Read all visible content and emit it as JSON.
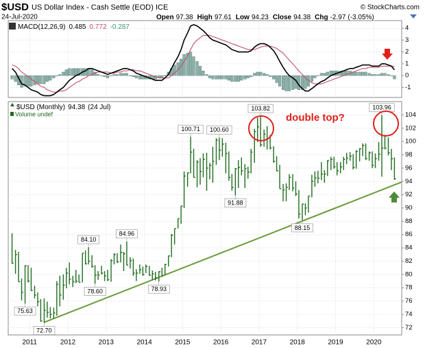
{
  "chart_data": {
    "type": "ohlc",
    "title": "$USD",
    "subtitle": "US Dollar Index - Cash Settle (EOD) ICE",
    "date": "24-Jul-2020",
    "source": "© StockCharts.com",
    "stats": [
      {
        "label": "Open",
        "value": 97.38
      },
      {
        "label": "High",
        "value": 97.61
      },
      {
        "label": "Low",
        "value": 94.23
      },
      {
        "label": "Close",
        "value": 94.38
      },
      {
        "label": "Chg",
        "value": -2.97
      }
    ],
    "change_percent": {
      "value": -3.05,
      "label": "(-3.05%)"
    },
    "legend_date": "(24 Jul)",
    "volume_label": "Volume undef",
    "annotation": "double top?",
    "grid": true,
    "xlim": [
      2010.44,
      2020.73
    ],
    "xticks": [
      2011,
      2012,
      2013,
      2014,
      2015,
      2016,
      2017,
      2018,
      2019,
      2020
    ],
    "ylim": [
      70.9,
      106
    ],
    "yticks": [
      72,
      74,
      76,
      78,
      80,
      82,
      84,
      86,
      88,
      90,
      92,
      94,
      96,
      98,
      100,
      102,
      104
    ],
    "y2lim": [
      -1.85,
      4.65
    ],
    "y2ticks": [
      -1,
      0,
      1,
      2,
      3,
      4
    ],
    "x": [
      2010.54,
      2010.63,
      2010.71,
      2010.79,
      2010.88,
      2010.96,
      2011.04,
      2011.13,
      2011.21,
      2011.29,
      2011.38,
      2011.46,
      2011.54,
      2011.63,
      2011.71,
      2011.79,
      2011.88,
      2011.96,
      2012.04,
      2012.13,
      2012.21,
      2012.29,
      2012.38,
      2012.46,
      2012.54,
      2012.63,
      2012.71,
      2012.79,
      2012.88,
      2012.96,
      2013.04,
      2013.13,
      2013.21,
      2013.29,
      2013.38,
      2013.46,
      2013.54,
      2013.63,
      2013.71,
      2013.79,
      2013.88,
      2013.96,
      2014.04,
      2014.13,
      2014.21,
      2014.29,
      2014.38,
      2014.46,
      2014.54,
      2014.63,
      2014.71,
      2014.79,
      2014.88,
      2014.96,
      2015.04,
      2015.13,
      2015.21,
      2015.29,
      2015.38,
      2015.46,
      2015.54,
      2015.63,
      2015.71,
      2015.79,
      2015.88,
      2015.96,
      2016.04,
      2016.13,
      2016.21,
      2016.29,
      2016.38,
      2016.46,
      2016.54,
      2016.63,
      2016.71,
      2016.79,
      2016.88,
      2016.96,
      2017.04,
      2017.13,
      2017.21,
      2017.29,
      2017.38,
      2017.46,
      2017.54,
      2017.63,
      2017.71,
      2017.79,
      2017.88,
      2017.96,
      2018.04,
      2018.13,
      2018.21,
      2018.29,
      2018.38,
      2018.46,
      2018.54,
      2018.63,
      2018.71,
      2018.79,
      2018.88,
      2018.96,
      2019.04,
      2019.13,
      2019.21,
      2019.29,
      2019.38,
      2019.46,
      2019.54,
      2019.63,
      2019.71,
      2019.79,
      2019.88,
      2019.96,
      2020.04,
      2020.13,
      2020.21,
      2020.29,
      2020.38,
      2020.46,
      2020.54
    ],
    "series": [
      {
        "name": "$USD (Monthly)",
        "color": "#1f6b1f",
        "high": [
          86.2,
          83.7,
          83.4,
          79.4,
          81.4,
          81.4,
          81.0,
          78.3,
          77.3,
          76.3,
          76.4,
          75.9,
          75.1,
          75.0,
          79.0,
          79.8,
          80.0,
          81.0,
          81.8,
          79.8,
          80.7,
          80.0,
          83.2,
          83.6,
          84.1,
          82.9,
          81.4,
          80.5,
          81.3,
          80.5,
          80.7,
          82.3,
          83.2,
          83.2,
          84.5,
          83.4,
          84.96,
          82.6,
          82.4,
          80.8,
          81.5,
          81.2,
          81.5,
          81.3,
          80.6,
          80.4,
          80.5,
          81.0,
          81.6,
          82.8,
          86.1,
          86.9,
          88.4,
          90.3,
          95.5,
          95.3,
          100.71,
          98.9,
          97.2,
          97.5,
          98.2,
          98.3,
          96.8,
          99.2,
          100.5,
          100.6,
          100.5,
          99.8,
          98.5,
          95.1,
          96.0,
          97.2,
          97.6,
          96.6,
          96.2,
          98.9,
          101.9,
          103.6,
          103.82,
          101.8,
          102.3,
          101.0,
          99.3,
          97.8,
          96.5,
          93.6,
          93.7,
          95.1,
          95.1,
          94.0,
          92.7,
          90.6,
          90.7,
          91.8,
          95.0,
          95.5,
          95.6,
          96.9,
          95.7,
          97.2,
          97.7,
          97.7,
          96.9,
          96.9,
          97.7,
          98.3,
          98.4,
          98.1,
          98.7,
          99.0,
          99.7,
          99.7,
          98.5,
          98.5,
          98.2,
          99.9,
          103.96,
          101.0,
          100.6,
          98.9,
          97.61
        ],
        "low": [
          81.6,
          80.1,
          78.9,
          76.1,
          75.63,
          78.8,
          77.5,
          76.4,
          75.2,
          72.9,
          72.7,
          73.5,
          73.4,
          73.4,
          73.8,
          75.2,
          76.2,
          77.9,
          78.5,
          78.1,
          78.7,
          78.8,
          78.8,
          81.5,
          81.5,
          81.0,
          78.6,
          79.2,
          80.0,
          79.0,
          79.0,
          78.9,
          81.5,
          81.7,
          81.8,
          80.5,
          81.4,
          80.9,
          79.8,
          79.0,
          80.1,
          79.8,
          80.2,
          79.8,
          79.2,
          79.1,
          78.93,
          79.7,
          79.9,
          81.2,
          82.6,
          84.5,
          86.9,
          87.6,
          90.0,
          93.2,
          95.2,
          94.6,
          93.1,
          93.5,
          94.6,
          92.6,
          94.3,
          93.8,
          96.5,
          97.2,
          97.7,
          95.2,
          94.1,
          92.6,
          91.88,
          93.0,
          94.9,
          93.0,
          94.4,
          95.2,
          96.8,
          99.9,
          99.2,
          99.2,
          98.8,
          98.8,
          96.8,
          95.5,
          92.9,
          91.0,
          91.0,
          92.7,
          92.5,
          91.8,
          88.4,
          88.15,
          88.9,
          89.3,
          91.6,
          93.2,
          93.7,
          94.2,
          93.8,
          94.8,
          95.7,
          95.9,
          94.9,
          95.2,
          95.7,
          96.6,
          97.1,
          95.8,
          95.9,
          97.0,
          97.8,
          97.2,
          97.1,
          96.0,
          96.0,
          97.1,
          94.7,
          98.8,
          97.9,
          95.7,
          94.23
        ],
        "close": [
          81.7,
          83.0,
          78.9,
          77.3,
          81.3,
          79.0,
          77.6,
          76.9,
          75.9,
          73.0,
          74.6,
          74.3,
          74.0,
          74.2,
          78.5,
          76.9,
          78.4,
          80.2,
          79.3,
          78.9,
          79.0,
          78.8,
          83.2,
          81.6,
          82.0,
          81.2,
          79.9,
          79.9,
          80.2,
          79.8,
          79.2,
          82.1,
          83.0,
          81.9,
          83.3,
          83.1,
          81.4,
          82.1,
          80.2,
          80.2,
          80.7,
          80.0,
          81.2,
          79.9,
          80.1,
          79.5,
          80.4,
          79.8,
          81.5,
          82.8,
          85.9,
          86.9,
          88.4,
          90.3,
          94.8,
          95.3,
          98.4,
          94.6,
          96.9,
          95.5,
          97.3,
          96.0,
          96.4,
          97.0,
          100.2,
          98.7,
          99.6,
          98.2,
          94.6,
          93.1,
          95.9,
          96.1,
          95.6,
          95.9,
          95.4,
          98.4,
          101.5,
          102.2,
          99.5,
          101.1,
          100.4,
          99.0,
          97.0,
          95.6,
          92.9,
          92.7,
          93.1,
          94.6,
          93.0,
          92.1,
          89.1,
          90.6,
          90.0,
          91.8,
          94.0,
          94.5,
          94.5,
          95.1,
          95.1,
          97.1,
          97.3,
          96.2,
          95.6,
          96.2,
          97.3,
          97.5,
          97.8,
          96.1,
          98.5,
          98.9,
          99.4,
          97.4,
          98.3,
          96.4,
          97.4,
          98.1,
          99.0,
          99.0,
          98.3,
          97.4,
          94.38
        ]
      },
      {
        "name": "MACD(12,26,9)",
        "type": "line",
        "axis": "y2",
        "color": "#000000",
        "values": [
          0.6,
          0.3,
          -0.2,
          -0.7,
          -0.8,
          -1.0,
          -1.2,
          -1.3,
          -1.4,
          -1.6,
          -1.7,
          -1.7,
          -1.7,
          -1.6,
          -1.4,
          -1.2,
          -1.0,
          -0.7,
          -0.4,
          -0.2,
          0,
          0.1,
          0.3,
          0.4,
          0.6,
          0.6,
          0.5,
          0.4,
          0.3,
          0.2,
          0.1,
          0.2,
          0.3,
          0.4,
          0.5,
          0.6,
          0.6,
          0.5,
          0.4,
          0.2,
          0.1,
          0,
          -0.1,
          -0.2,
          -0.3,
          -0.4,
          -0.4,
          -0.4,
          -0.2,
          0.1,
          0.6,
          1.1,
          1.6,
          2.2,
          3.0,
          3.6,
          4.2,
          4.3,
          4.2,
          4.0,
          3.8,
          3.5,
          3.2,
          3.0,
          2.9,
          2.8,
          2.7,
          2.6,
          2.4,
          2.2,
          2.1,
          2.0,
          2.0,
          2.0,
          2.0,
          2.1,
          2.4,
          2.6,
          2.7,
          2.7,
          2.6,
          2.4,
          2.1,
          1.7,
          1.2,
          0.7,
          0.3,
          0,
          -0.2,
          -0.4,
          -0.8,
          -1.1,
          -1.3,
          -1.3,
          -1.1,
          -0.9,
          -0.7,
          -0.5,
          -0.4,
          -0.2,
          0,
          0.1,
          0.2,
          0.3,
          0.4,
          0.5,
          0.6,
          0.6,
          0.7,
          0.8,
          0.9,
          0.9,
          0.9,
          0.8,
          0.8,
          0.8,
          1.0,
          1.0,
          0.9,
          0.8,
          0.485
        ]
      },
      {
        "type": "line",
        "axis": "y2",
        "color": "#c0506a",
        "values": [
          0.9,
          0.8,
          0.6,
          0.3,
          0.1,
          -0.1,
          -0.3,
          -0.5,
          -0.7,
          -0.9,
          -1.0,
          -1.2,
          -1.3,
          -1.4,
          -1.4,
          -1.3,
          -1.3,
          -1.2,
          -1.0,
          -0.8,
          -0.6,
          -0.5,
          -0.3,
          -0.2,
          0,
          0.1,
          0.2,
          0.3,
          0.3,
          0.3,
          0.3,
          0.2,
          0.2,
          0.3,
          0.3,
          0.4,
          0.4,
          0.5,
          0.5,
          0.4,
          0.4,
          0.3,
          0.2,
          0.1,
          0,
          -0.1,
          -0.2,
          -0.2,
          -0.2,
          -0.2,
          0,
          0.2,
          0.5,
          0.8,
          1.2,
          1.7,
          2.2,
          2.7,
          3.0,
          3.2,
          3.4,
          3.4,
          3.4,
          3.3,
          3.2,
          3.1,
          3.0,
          2.9,
          2.8,
          2.7,
          2.6,
          2.5,
          2.4,
          2.3,
          2.2,
          2.2,
          2.2,
          2.3,
          2.4,
          2.5,
          2.5,
          2.5,
          2.4,
          2.3,
          2.1,
          1.9,
          1.6,
          1.3,
          1.0,
          0.7,
          0.4,
          0.1,
          -0.2,
          -0.4,
          -0.6,
          -0.7,
          -0.7,
          -0.7,
          -0.6,
          -0.5,
          -0.4,
          -0.3,
          -0.2,
          -0.1,
          0,
          0.1,
          0.2,
          0.3,
          0.4,
          0.5,
          0.6,
          0.6,
          0.7,
          0.7,
          0.7,
          0.7,
          0.8,
          0.8,
          0.8,
          0.8,
          0.772
        ]
      },
      {
        "type": "histogram",
        "axis": "y2",
        "color": "#8ab0a8",
        "values": [
          -0.3,
          -0.5,
          -0.8,
          -1.0,
          -0.9,
          -0.9,
          -0.9,
          -0.8,
          -0.7,
          -0.7,
          -0.7,
          -0.5,
          -0.4,
          -0.2,
          0,
          0.1,
          0.3,
          0.5,
          0.6,
          0.6,
          0.6,
          0.6,
          0.6,
          0.6,
          0.6,
          0.5,
          0.3,
          0.1,
          0,
          -0.1,
          -0.2,
          0,
          0.1,
          0.1,
          0.2,
          0.2,
          0.2,
          0,
          -0.1,
          -0.2,
          -0.3,
          -0.3,
          -0.3,
          -0.3,
          -0.3,
          -0.3,
          -0.2,
          -0.2,
          0,
          0.3,
          0.6,
          0.9,
          1.1,
          1.4,
          1.8,
          1.9,
          2.0,
          1.6,
          1.2,
          0.8,
          0.4,
          0.1,
          -0.2,
          -0.3,
          -0.3,
          -0.3,
          -0.3,
          -0.3,
          -0.4,
          -0.5,
          -0.5,
          -0.5,
          -0.4,
          -0.3,
          -0.2,
          -0.1,
          0.2,
          0.3,
          0.3,
          0.2,
          0.1,
          -0.1,
          -0.3,
          -0.6,
          -0.9,
          -1.2,
          -1.3,
          -1.3,
          -1.2,
          -1.1,
          -1.2,
          -1.2,
          -1.1,
          -0.9,
          -0.5,
          -0.2,
          0,
          0.2,
          0.2,
          0.3,
          0.4,
          0.4,
          0.4,
          0.4,
          0.4,
          0.4,
          0.4,
          0.3,
          0.3,
          0.3,
          0.3,
          0.3,
          0.2,
          0.1,
          0.1,
          0.1,
          0.2,
          0.2,
          0.1,
          0,
          -0.287
        ]
      }
    ],
    "price_labels": [
      {
        "value": 75.63,
        "label": "75.63"
      },
      {
        "value": 72.7,
        "label": "72.70"
      },
      {
        "value": 84.1,
        "label": "84.10"
      },
      {
        "value": 78.6,
        "label": "78.60"
      },
      {
        "value": 84.96,
        "label": "84.96"
      },
      {
        "value": 78.93,
        "label": "78.93"
      },
      {
        "value": 100.71,
        "label": "100.71"
      },
      {
        "value": 100.6,
        "label": "100.60"
      },
      {
        "value": 91.88,
        "label": "91.88"
      },
      {
        "value": 103.82,
        "label": "103.82"
      },
      {
        "value": 88.15,
        "label": "88.15"
      },
      {
        "value": 103.96,
        "label": "103.96"
      }
    ],
    "trendline": {
      "color": "#6a9a3a",
      "x": [
        2011.38,
        2020.73
      ],
      "values": [
        72.8,
        93.9
      ]
    }
  }
}
